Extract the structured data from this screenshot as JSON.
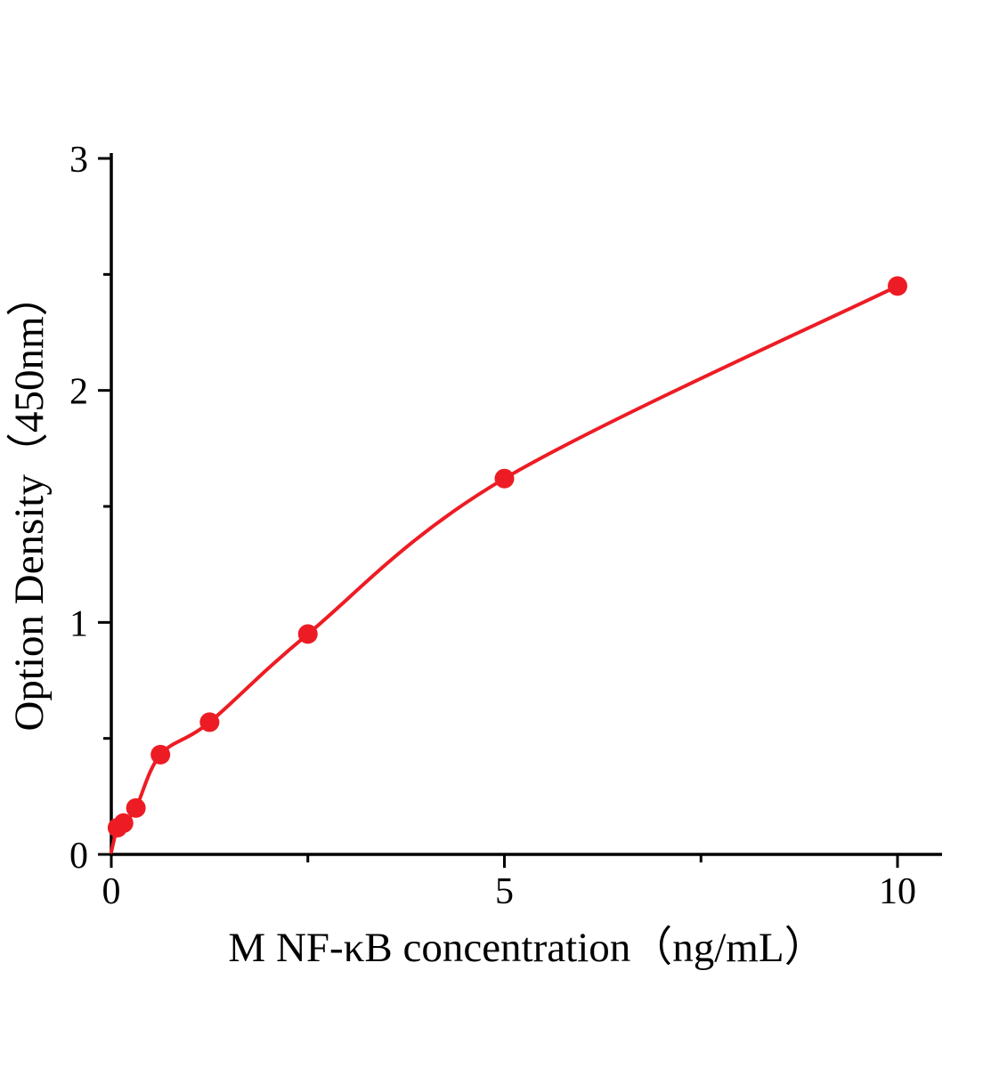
{
  "chart_data": {
    "type": "scatter",
    "title": "",
    "xlabel": "M NF-κB concentration（ng/mL）",
    "ylabel": "Option Density（450nm）",
    "xlim": [
      0,
      10.6
    ],
    "ylim": [
      0,
      3
    ],
    "x": [
      0.078,
      0.156,
      0.313,
      0.625,
      1.25,
      2.5,
      5,
      10
    ],
    "y": [
      0.115,
      0.135,
      0.2,
      0.43,
      0.57,
      0.95,
      1.62,
      2.45
    ],
    "curve_start": {
      "x": 0,
      "y": 0.01
    },
    "xticks": {
      "major": [
        0,
        5,
        10
      ],
      "labels": [
        "0",
        "5",
        "10"
      ],
      "minor": [
        2.5,
        7.5
      ]
    },
    "yticks": {
      "major": [
        0,
        1,
        2,
        3
      ],
      "labels": [
        "0",
        "1",
        "2",
        "3"
      ],
      "minor": [
        0.5,
        1.5,
        2.5
      ]
    },
    "marker_color": "#ed1c24",
    "line_color": "#ed1c24",
    "axis_color": "#000000",
    "background": "#ffffff",
    "grid": "off",
    "legend": "none"
  }
}
